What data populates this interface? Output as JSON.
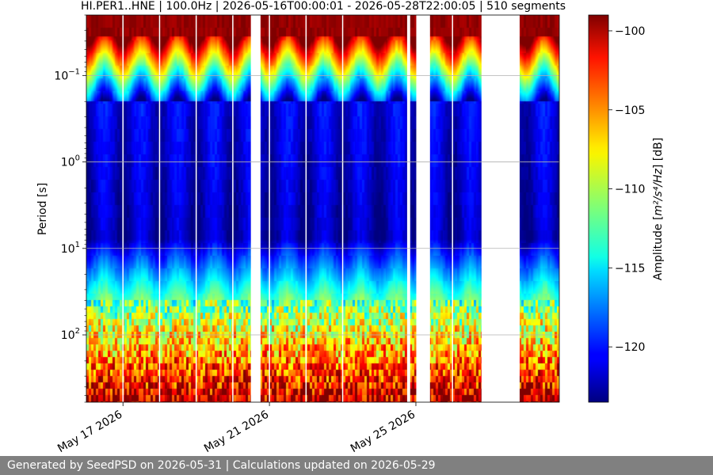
{
  "chart_data": {
    "type": "heatmap",
    "title": "HI.PER1..HNE | 100.0Hz | 2026-05-16T00:00:01 - 2026-05-28T22:00:05 | 510 segments",
    "ylabel": "Period [s]",
    "xlabel": "",
    "y_scale": "log",
    "y_inverted": true,
    "ylim": [
      0.02,
      600
    ],
    "y_ticks": [
      {
        "value": 0.1,
        "base": "10",
        "exp": "−1"
      },
      {
        "value": 1,
        "base": "10",
        "exp": "0"
      },
      {
        "value": 10,
        "base": "10",
        "exp": "1"
      },
      {
        "value": 100,
        "base": "10",
        "exp": "2"
      }
    ],
    "xlim": [
      "2026-05-16T00:00:00",
      "2026-05-28T22:00:00"
    ],
    "x_ticks": [
      {
        "value": "2026-05-17T00:00:00",
        "label": "May 17 2026"
      },
      {
        "value": "2026-05-21T00:00:00",
        "label": "May 21 2026"
      },
      {
        "value": "2026-05-25T00:00:00",
        "label": "May 25 2026"
      }
    ],
    "grid": true,
    "data_gaps": [
      [
        "2026-05-20T11:50:00",
        "2026-05-20T18:10:00"
      ],
      [
        "2026-05-24T18:15:00",
        "2026-05-24T20:15:00"
      ],
      [
        "2026-05-25T00:15:00",
        "2026-05-25T09:15:00"
      ],
      [
        "2026-05-26T19:00:00",
        "2026-05-27T20:00:00"
      ]
    ],
    "segment_boundaries": [
      "2026-05-17T00:00:00",
      "2026-05-18T00:00:00",
      "2026-05-19T00:00:00",
      "2026-05-20T00:00:00",
      "2026-05-21T00:00:00",
      "2026-05-22T00:00:00",
      "2026-05-23T00:00:00",
      "2026-05-26T00:00:00"
    ],
    "colorbar": {
      "label_prefix": "Amplitude [",
      "label_math": "m²/s⁴/Hz",
      "label_suffix": "] [dB]",
      "vmin": -123.5,
      "vmax": -99.0,
      "ticks": [
        -100,
        -105,
        -110,
        -115,
        -120
      ],
      "tick_labels": [
        "−100",
        "−105",
        "−110",
        "−115",
        "−120"
      ],
      "colormap": "jet"
    }
  },
  "footer": {
    "text": "Generated by SeedPSD on 2026-05-31 | Calculations updated on 2026-05-29"
  }
}
